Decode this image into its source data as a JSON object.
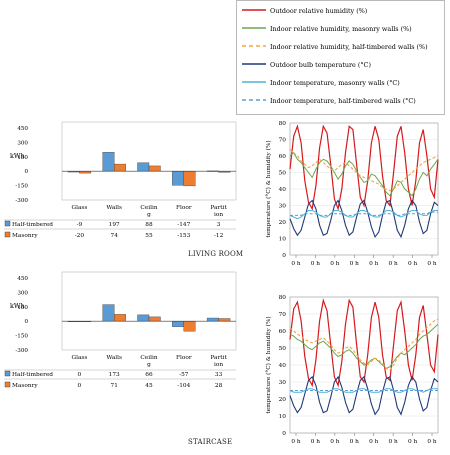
{
  "legend": {
    "items": [
      {
        "label": "Outdoor relative humidity (%)",
        "color": "#d7191c",
        "dash": false
      },
      {
        "label": "Indoor relative humidity, masonry walls (%)",
        "color": "#6aa84f",
        "dash": false
      },
      {
        "label": "Indoor relative humidity, half-timbered walls (%)",
        "color": "#f4a340",
        "dash": true
      },
      {
        "label": "Outdoor bulb temperature (°C)",
        "color": "#1f3a7a",
        "dash": false
      },
      {
        "label": "Indoor temperature, masonry walls (°C)",
        "color": "#4fb3d9",
        "dash": false
      },
      {
        "label": "Indoor temperature, half-timbered walls (°C)",
        "color": "#5b9bd5",
        "dash": true
      }
    ]
  },
  "captions": {
    "top": "LIVING ROOM",
    "bottom": "STAIRCASE"
  },
  "chart_data": [
    {
      "type": "bar",
      "ylabel": "kWh",
      "yticks": [
        "450",
        "300",
        "150",
        "0",
        "-150",
        "-300"
      ],
      "ylim": [
        -300,
        450
      ],
      "categories": [
        "Glass",
        "Walls",
        "Ceilin\ng",
        "Floor",
        "Partit\nion"
      ],
      "series": [
        {
          "name": "Half-timbered",
          "color": "#5b9bd5",
          "values": [
            -9,
            197,
            88,
            -147,
            3
          ],
          "labels": [
            "-9",
            "197",
            "88",
            "-147",
            "3"
          ]
        },
        {
          "name": "Masonry",
          "color": "#ed7d31",
          "values": [
            -20,
            74,
            55,
            -153,
            -12
          ],
          "labels": [
            "-20",
            "74",
            "55",
            "-153",
            "-12"
          ]
        }
      ]
    },
    {
      "type": "line",
      "ylabel": "temperature (°C) & humidity (%)",
      "yticks": [
        "80",
        "70",
        "60",
        "50",
        "40",
        "30",
        "20",
        "10",
        "0"
      ],
      "ylim": [
        0,
        80
      ],
      "xticks": [
        "0 h",
        "0 h",
        "0 h",
        "0 h",
        "0 h",
        "0 h",
        "0 h",
        "0 h"
      ],
      "series": [
        {
          "name": "Outdoor relative humidity (%)",
          "values": [
            52,
            72,
            78,
            68,
            45,
            32,
            28,
            42,
            65,
            78,
            74,
            55,
            34,
            28,
            40,
            62,
            78,
            76,
            55,
            35,
            30,
            45,
            68,
            78,
            70,
            48,
            33,
            30,
            50,
            72,
            78,
            62,
            40,
            30,
            45,
            68,
            76,
            60,
            40,
            35,
            58
          ]
        },
        {
          "name": "Indoor relative humidity, masonry walls (%)",
          "values": [
            60,
            62,
            58,
            56,
            53,
            50,
            47,
            52,
            56,
            58,
            57,
            54,
            50,
            46,
            49,
            54,
            57,
            55,
            51,
            47,
            44,
            45,
            49,
            48,
            45,
            42,
            38,
            36,
            40,
            45,
            44,
            40,
            38,
            36,
            40,
            46,
            50,
            48,
            52,
            55,
            58
          ]
        },
        {
          "name": "Indoor relative humidity, half-timbered walls (%)",
          "values": [
            64,
            62,
            60,
            57,
            55,
            53,
            54,
            56,
            58,
            56,
            54,
            52,
            51,
            53,
            55,
            56,
            54,
            52,
            50,
            48,
            47,
            46,
            45,
            44,
            43,
            41,
            40,
            39,
            40,
            42,
            44,
            46,
            48,
            50,
            52,
            54,
            56,
            57,
            58,
            59,
            60
          ]
        },
        {
          "name": "Outdoor bulb temperature (°C)",
          "values": [
            22,
            16,
            12,
            15,
            23,
            31,
            33,
            28,
            18,
            12,
            13,
            21,
            30,
            33,
            27,
            18,
            12,
            14,
            23,
            31,
            33,
            26,
            17,
            11,
            14,
            24,
            32,
            33,
            25,
            15,
            11,
            18,
            28,
            33,
            30,
            20,
            13,
            15,
            25,
            32,
            30
          ]
        },
        {
          "name": "Indoor temperature, masonry walls (°C)",
          "values": [
            24,
            23,
            22,
            23,
            25,
            27,
            27,
            26,
            24,
            23,
            23,
            25,
            27,
            27,
            26,
            24,
            23,
            23,
            25,
            27,
            27,
            26,
            24,
            23,
            23,
            25,
            27,
            27,
            26,
            24,
            23,
            24,
            26,
            27,
            27,
            25,
            24,
            24,
            26,
            27,
            27
          ]
        },
        {
          "name": "Indoor temperature, half-timbered walls (°C)",
          "values": [
            24,
            24,
            24,
            24,
            25,
            25,
            25,
            25,
            24,
            24,
            24,
            25,
            25,
            25,
            25,
            24,
            24,
            24,
            25,
            25,
            25,
            25,
            24,
            24,
            24,
            25,
            25,
            25,
            25,
            24,
            24,
            25,
            25,
            25,
            25,
            25,
            25,
            25,
            26,
            26,
            26
          ]
        }
      ]
    },
    {
      "type": "bar",
      "ylabel": "kWh",
      "yticks": [
        "450",
        "300",
        "150",
        "0",
        "-150",
        "-300"
      ],
      "ylim": [
        -300,
        450
      ],
      "categories": [
        "Glass",
        "Walls",
        "Ceilin\ng",
        "Floor",
        "Partit\nion"
      ],
      "series": [
        {
          "name": "Half-timbered",
          "color": "#5b9bd5",
          "values": [
            0,
            173,
            66,
            -57,
            33
          ],
          "labels": [
            "0",
            "173",
            "66",
            "-57",
            "33"
          ]
        },
        {
          "name": "Masonry",
          "color": "#ed7d31",
          "values": [
            0,
            71,
            45,
            -104,
            28
          ],
          "labels": [
            "0",
            "71",
            "45",
            "-104",
            "28"
          ]
        }
      ]
    },
    {
      "type": "line",
      "ylabel": "temperature (°C) & humidity (%)",
      "yticks": [
        "80",
        "70",
        "60",
        "50",
        "40",
        "30",
        "20",
        "10",
        "0"
      ],
      "ylim": [
        0,
        80
      ],
      "xticks": [
        "0 h",
        "0 h",
        "0 h",
        "0 h",
        "0 h",
        "0 h",
        "0 h",
        "0 h"
      ],
      "series": [
        {
          "name": "Outdoor relative humidity (%)",
          "values": [
            55,
            73,
            77,
            66,
            45,
            32,
            28,
            43,
            66,
            78,
            72,
            52,
            33,
            28,
            42,
            64,
            78,
            74,
            52,
            33,
            30,
            46,
            68,
            77,
            68,
            46,
            33,
            31,
            52,
            72,
            77,
            60,
            40,
            31,
            46,
            68,
            75,
            58,
            40,
            36,
            58
          ]
        },
        {
          "name": "Indoor relative humidity, masonry walls (%)",
          "values": [
            58,
            57,
            55,
            54,
            52,
            50,
            49,
            51,
            53,
            54,
            52,
            50,
            47,
            45,
            46,
            48,
            49,
            47,
            44,
            42,
            40,
            41,
            43,
            44,
            42,
            40,
            38,
            39,
            42,
            45,
            47,
            46,
            48,
            50,
            52,
            55,
            57,
            58,
            60,
            62,
            64
          ]
        },
        {
          "name": "Indoor relative humidity, half-timbered walls (%)",
          "values": [
            62,
            60,
            58,
            57,
            55,
            54,
            53,
            54,
            55,
            56,
            54,
            52,
            49,
            47,
            48,
            50,
            51,
            49,
            46,
            43,
            41,
            40,
            42,
            44,
            43,
            41,
            38,
            37,
            40,
            44,
            47,
            49,
            51,
            53,
            55,
            58,
            60,
            62,
            64,
            66,
            67
          ]
        },
        {
          "name": "Outdoor bulb temperature (°C)",
          "values": [
            22,
            16,
            12,
            15,
            23,
            31,
            33,
            28,
            18,
            12,
            13,
            21,
            30,
            33,
            27,
            18,
            12,
            14,
            23,
            31,
            33,
            26,
            17,
            11,
            14,
            24,
            32,
            33,
            25,
            15,
            11,
            18,
            28,
            33,
            30,
            20,
            13,
            15,
            25,
            32,
            30
          ]
        },
        {
          "name": "Indoor temperature, masonry walls (°C)",
          "values": [
            25,
            24,
            24,
            24,
            25,
            26,
            26,
            25,
            24,
            24,
            24,
            25,
            26,
            26,
            25,
            24,
            24,
            24,
            25,
            26,
            26,
            25,
            24,
            24,
            24,
            25,
            26,
            26,
            25,
            24,
            24,
            25,
            26,
            26,
            25,
            25,
            24,
            25,
            26,
            26,
            26
          ]
        },
        {
          "name": "Indoor temperature, half-timbered walls (°C)",
          "values": [
            25,
            25,
            25,
            25,
            25,
            25,
            25,
            25,
            25,
            25,
            25,
            25,
            25,
            25,
            25,
            25,
            25,
            25,
            25,
            25,
            25,
            25,
            25,
            25,
            25,
            25,
            25,
            25,
            25,
            25,
            25,
            25,
            25,
            25,
            25,
            25,
            25,
            25,
            25,
            25,
            25
          ]
        }
      ]
    }
  ]
}
